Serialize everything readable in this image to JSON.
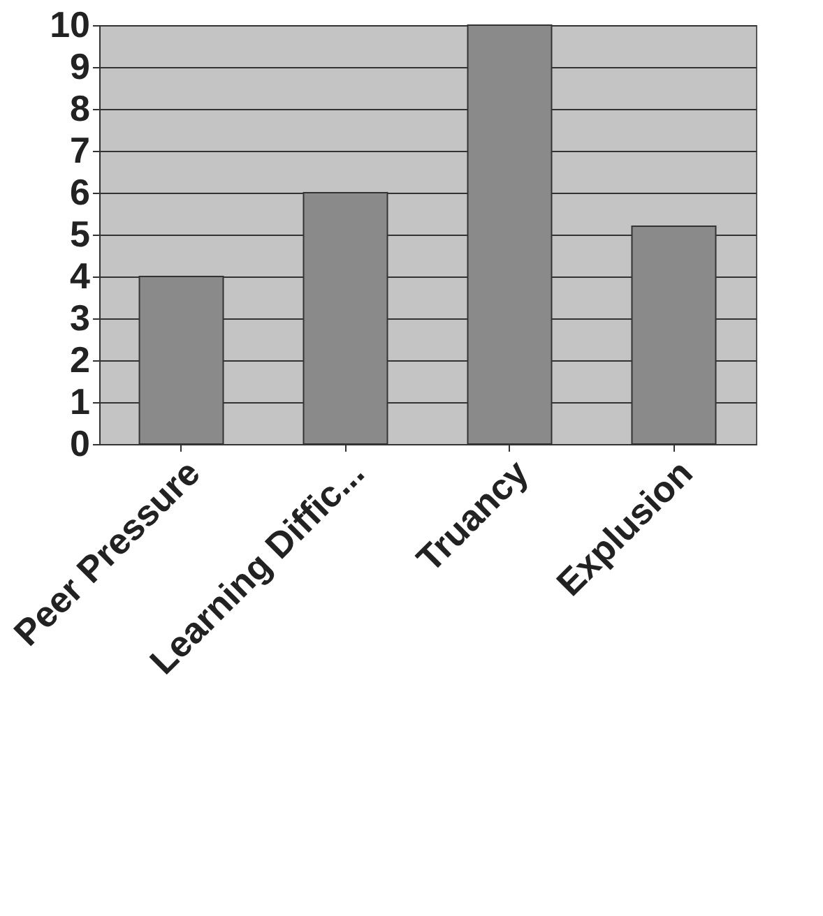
{
  "chart_data": {
    "type": "bar",
    "categories": [
      "Peer Pressure",
      "Learning Diffic...",
      "Truancy",
      "Explusion"
    ],
    "values": [
      4,
      6,
      10,
      5.2
    ],
    "color": "#8a8a8a",
    "ylim": [
      0,
      10
    ],
    "yticks": [
      0,
      1,
      2,
      3,
      4,
      5,
      6,
      7,
      8,
      9,
      10
    ],
    "grid": "y"
  }
}
